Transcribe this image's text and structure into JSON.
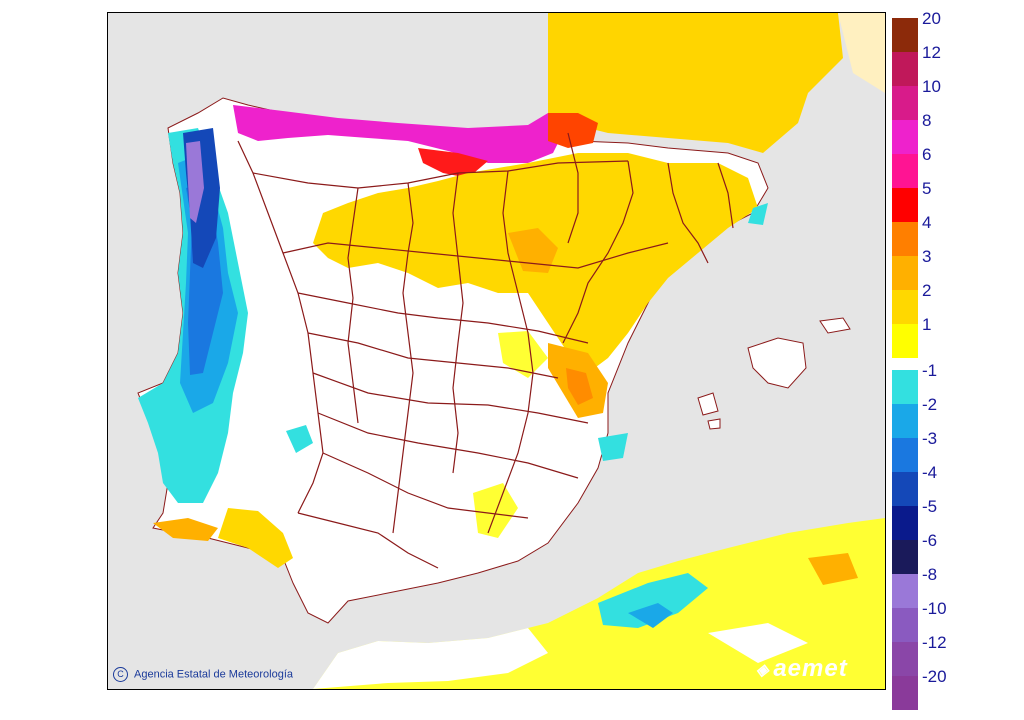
{
  "map": {
    "region": "Iberian Peninsula",
    "colors": {
      "sea": "#e5e5e5",
      "land_neutral": "#ffffff",
      "border": "#8b1a1a",
      "frame": "#000000"
    }
  },
  "legend": {
    "positive": [
      {
        "label": "20",
        "color": "#8c2a0a"
      },
      {
        "label": "12",
        "color": "#c0185a"
      },
      {
        "label": "10",
        "color": "#d81b8a"
      },
      {
        "label": "8",
        "color": "#ee22cc"
      },
      {
        "label": "6",
        "color": "#ff1493"
      },
      {
        "label": "5",
        "color": "#ff0000"
      },
      {
        "label": "4",
        "color": "#ff7f00"
      },
      {
        "label": "3",
        "color": "#ffb000"
      },
      {
        "label": "2",
        "color": "#ffd800"
      },
      {
        "label": "1",
        "color": "#ffff00"
      }
    ],
    "negative": [
      {
        "label": "-1",
        "color": "#33e0e0"
      },
      {
        "label": "-2",
        "color": "#1aa8e8"
      },
      {
        "label": "-3",
        "color": "#1a78e0"
      },
      {
        "label": "-4",
        "color": "#1448b8"
      },
      {
        "label": "-5",
        "color": "#0a1a8c"
      },
      {
        "label": "-6",
        "color": "#1a1a5a"
      },
      {
        "label": "-8",
        "color": "#9a78d8"
      },
      {
        "label": "-10",
        "color": "#8a5ac0"
      },
      {
        "label": "-12",
        "color": "#8a46a8"
      },
      {
        "label": "-20",
        "color": "#8a3a9a"
      }
    ]
  },
  "credit": {
    "symbol": "C",
    "text": "Agencia Estatal de Meteorología"
  },
  "logo": {
    "text": "aemet"
  }
}
